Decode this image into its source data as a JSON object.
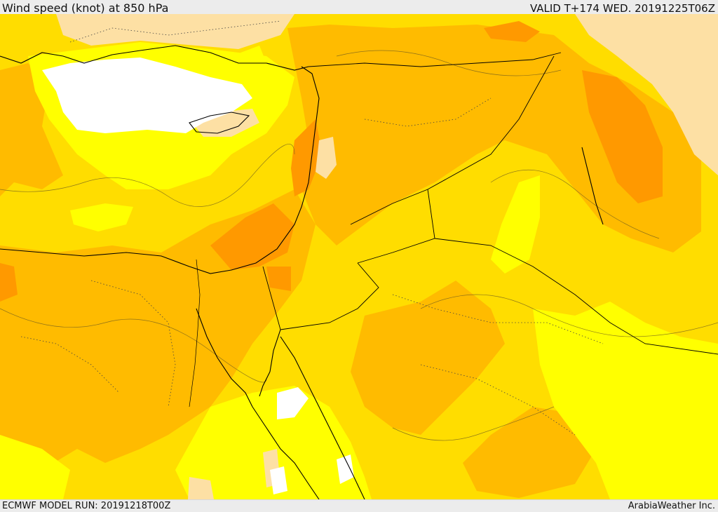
{
  "header": {
    "title": "Wind speed (knot) at 850 hPa",
    "valid": "VALID T+174 WED. 20191225T06Z"
  },
  "footer": {
    "model_run": "ECMWF MODEL RUN: 20191218T00Z",
    "credit": "ArabiaWeather Inc."
  },
  "colors": {
    "calm": "#ffffff",
    "very_light": "#fde0a4",
    "light": "#ffff00",
    "moderate": "#ffdd00",
    "fresh": "#ffbb00",
    "strong": "#ff9900",
    "border": "#000000"
  },
  "map": {
    "region": "Eastern Mediterranean, Levant, Arabian Peninsula, Egypt",
    "field": "wind speed"
  }
}
